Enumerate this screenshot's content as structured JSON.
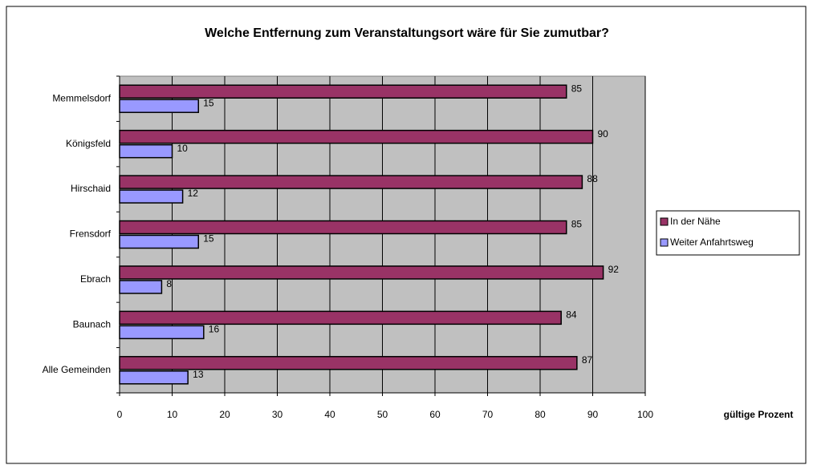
{
  "chart_data": {
    "type": "bar",
    "orientation": "horizontal",
    "title": "Welche Entfernung zum Veranstaltungsort wäre für Sie zumutbar?",
    "x_label": "gültige Prozent",
    "categories": [
      "Memmelsdorf",
      "Königsfeld",
      "Hirschaid",
      "Frensdorf",
      "Ebrach",
      "Baunach",
      "Alle Gemeinden"
    ],
    "series": [
      {
        "name": "In der Nähe",
        "color": "#993366",
        "values": [
          85,
          90,
          88,
          85,
          92,
          84,
          87
        ]
      },
      {
        "name": "Weiter Anfahrtsweg",
        "color": "#9999ff",
        "values": [
          15,
          10,
          12,
          15,
          8,
          16,
          13
        ]
      }
    ],
    "xlim": [
      0,
      100
    ],
    "xticks": [
      0,
      10,
      20,
      30,
      40,
      50,
      60,
      70,
      80,
      90,
      100
    ],
    "grid": true,
    "legend": "right"
  }
}
